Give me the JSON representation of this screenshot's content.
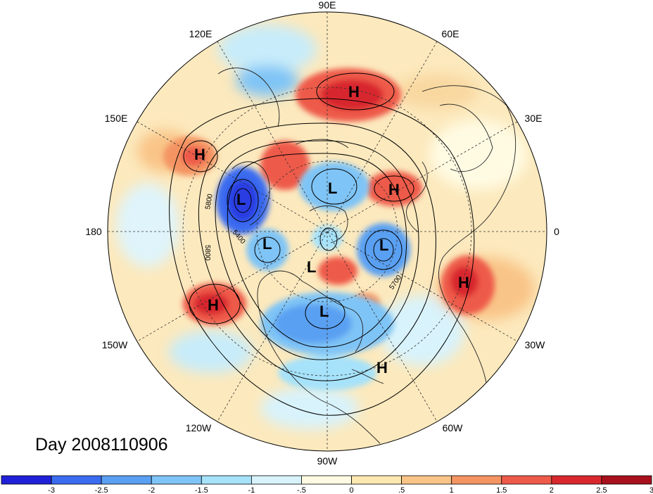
{
  "title": "Day 2008110906",
  "longitude_labels": {
    "lon_90e": "90E",
    "lon_120e": "120E",
    "lon_60e": "60E",
    "lon_150e": "150E",
    "lon_30e": "30E",
    "lon_180": "180",
    "lon_0": "0",
    "lon_150w": "150W",
    "lon_30w": "30W",
    "lon_120w": "120W",
    "lon_60w": "60W",
    "lon_90w": "90W"
  },
  "pressure_centers": [
    {
      "label": "H"
    },
    {
      "label": "H"
    },
    {
      "label": "H"
    },
    {
      "label": "H"
    },
    {
      "label": "H"
    },
    {
      "label": "H"
    },
    {
      "label": "L"
    },
    {
      "label": "L"
    },
    {
      "label": "L"
    },
    {
      "label": "L"
    },
    {
      "label": "L"
    },
    {
      "label": "L"
    }
  ],
  "contour_labels": [
    "5800",
    "5800",
    "5400",
    "5700"
  ],
  "colorbar": {
    "tick_labels": [
      "-3",
      "-2.5",
      "-2",
      "-1.5",
      "-1",
      "-.5",
      "0",
      ".5",
      "1",
      "1.5",
      "2",
      "2.5",
      "3"
    ],
    "colors": [
      "#2020d8",
      "#3a6cf0",
      "#5aa0f2",
      "#7fc4f6",
      "#a6e2fa",
      "#d8f3fc",
      "#fffbe3",
      "#fde8b2",
      "#f9c487",
      "#f49463",
      "#ee5a4a",
      "#d8282e",
      "#a8101e"
    ]
  }
}
